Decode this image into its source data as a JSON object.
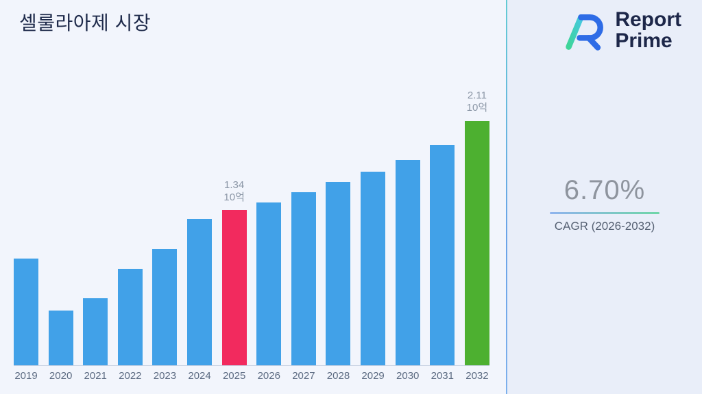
{
  "header": {
    "title": "셀룰라아제 시장"
  },
  "logo": {
    "name_line1": "Report",
    "name_line2": "Prime"
  },
  "stat": {
    "value": "6.70%",
    "label": "CAGR (2026-2032)"
  },
  "colors": {
    "bar_blue": "#41a1e8",
    "bar_pink": "#f22a5e",
    "bar_green": "#4db030",
    "accent_navy": "#1d2749",
    "underline_from": "#8fb3ee",
    "underline_to": "#6fd6a8"
  },
  "chart_data": {
    "type": "bar",
    "title": "셀룰라아제 시장",
    "unit_label": "10억",
    "categories": [
      "2019",
      "2020",
      "2021",
      "2022",
      "2023",
      "2024",
      "2025",
      "2026",
      "2027",
      "2028",
      "2029",
      "2030",
      "2031",
      "2032"
    ],
    "values": [
      0.92,
      0.47,
      0.58,
      0.83,
      1.0,
      1.26,
      1.34,
      1.4,
      1.49,
      1.58,
      1.67,
      1.77,
      1.9,
      2.11
    ],
    "ylim": [
      0,
      2.11
    ],
    "bar_color_default": "#41a1e8",
    "highlights": {
      "2025": {
        "color": "#f22a5e",
        "annotation": [
          "1.34",
          "10억"
        ]
      },
      "2032": {
        "color": "#4db030",
        "annotation": [
          "2.11",
          "10억"
        ]
      }
    },
    "grid": false,
    "legend": false,
    "xlabel": "",
    "ylabel": ""
  }
}
